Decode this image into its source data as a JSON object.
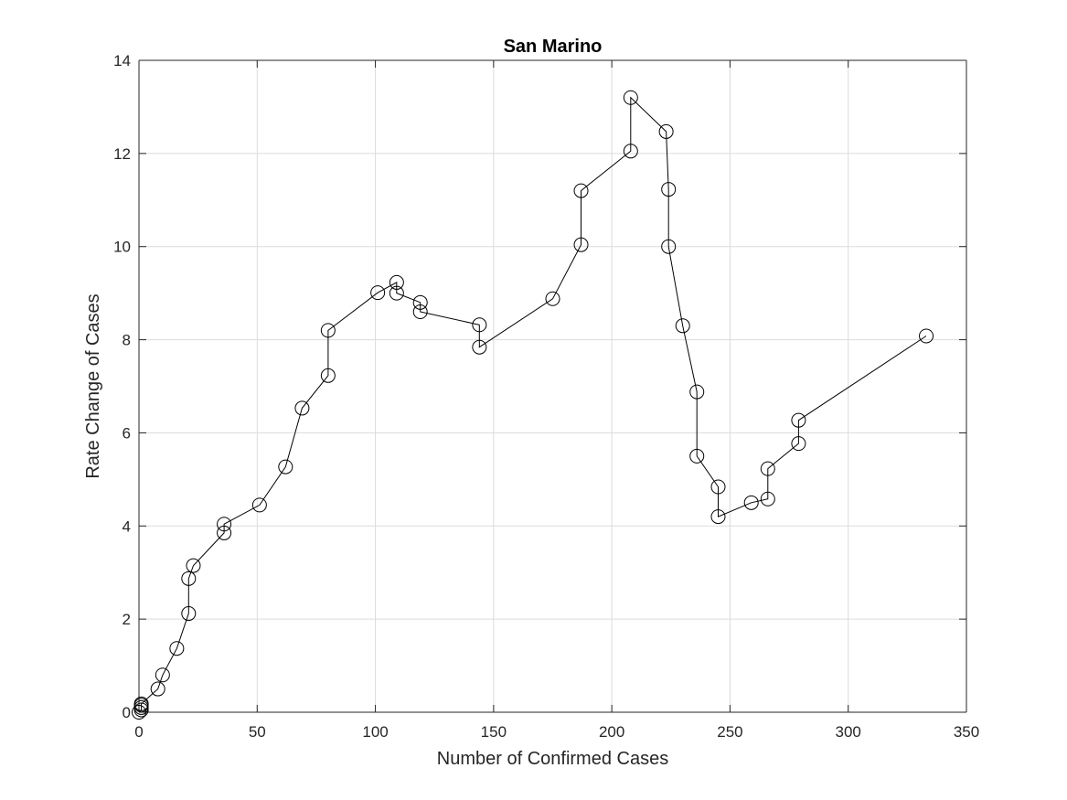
{
  "chart_data": {
    "type": "line",
    "title": "San Marino",
    "xlabel": "Number of Confirmed Cases",
    "ylabel": "Rate Change of Cases",
    "xlim": [
      0,
      350
    ],
    "ylim": [
      0,
      14
    ],
    "xticks": [
      0,
      50,
      100,
      150,
      200,
      250,
      300,
      350
    ],
    "yticks": [
      0,
      2,
      4,
      6,
      8,
      10,
      12,
      14
    ],
    "grid": true,
    "line_color": "#000000",
    "marker": "open-circle",
    "series": [
      {
        "x": [
          0,
          1,
          1,
          1,
          1,
          8,
          10,
          16,
          21,
          21,
          23,
          36,
          36,
          51,
          62,
          69,
          80,
          80,
          101,
          109,
          109,
          119,
          119,
          144,
          144,
          175,
          187,
          187,
          208,
          208,
          223,
          224,
          224,
          230,
          236,
          236,
          245,
          245,
          259,
          266,
          266,
          279,
          279,
          333
        ],
        "y": [
          0,
          0.05,
          0.1,
          0.15,
          0.18,
          0.5,
          0.8,
          1.37,
          2.12,
          2.87,
          3.15,
          3.85,
          4.04,
          4.45,
          5.27,
          6.53,
          7.23,
          8.2,
          9.01,
          9.23,
          9.0,
          8.8,
          8.6,
          8.32,
          7.84,
          8.88,
          10.04,
          11.2,
          12.05,
          13.2,
          12.47,
          11.23,
          10.0,
          8.3,
          6.88,
          5.5,
          4.84,
          4.2,
          4.5,
          4.58,
          5.23,
          5.77,
          6.27,
          8.08
        ]
      }
    ]
  }
}
